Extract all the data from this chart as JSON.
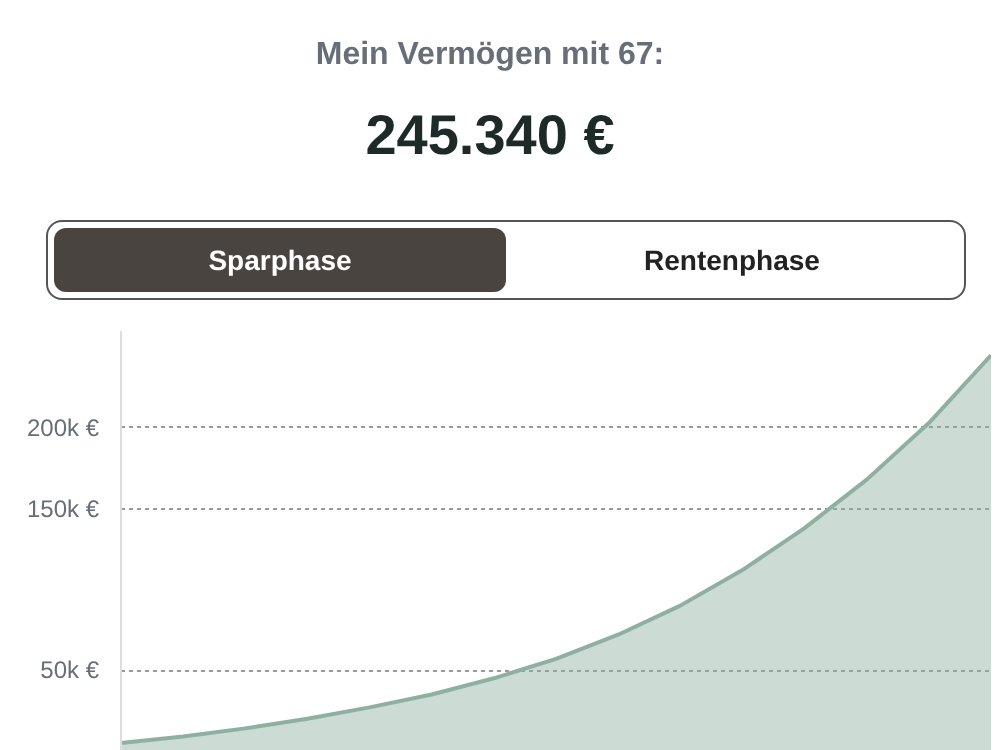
{
  "chart_data": {
    "type": "area",
    "title": "Mein Vermögen mit 67:",
    "subtitle": "245.340 €",
    "annotations": [
      "Sparphase",
      "Rentenphase"
    ],
    "categories": [
      null,
      null,
      null,
      null,
      null,
      null,
      null,
      null,
      null,
      null,
      null,
      null,
      null,
      null,
      null
    ],
    "series": [
      {
        "color": "#8fb0a0",
        "values": [
          5000,
          9000,
          14000,
          20000,
          27000,
          35000,
          45000,
          57000,
          72000,
          90000,
          112000,
          138000,
          168000,
          203000,
          245000
        ]
      }
    ],
    "ylim": [
      0,
      260000
    ],
    "yticks": [
      {
        "value": 50000,
        "label": "50k €"
      },
      {
        "value": 150000,
        "label": "150k €"
      },
      {
        "value": 200000,
        "label": "200k €"
      }
    ],
    "grid": "y",
    "tick_labels": "y",
    "line_style": "solid"
  }
}
